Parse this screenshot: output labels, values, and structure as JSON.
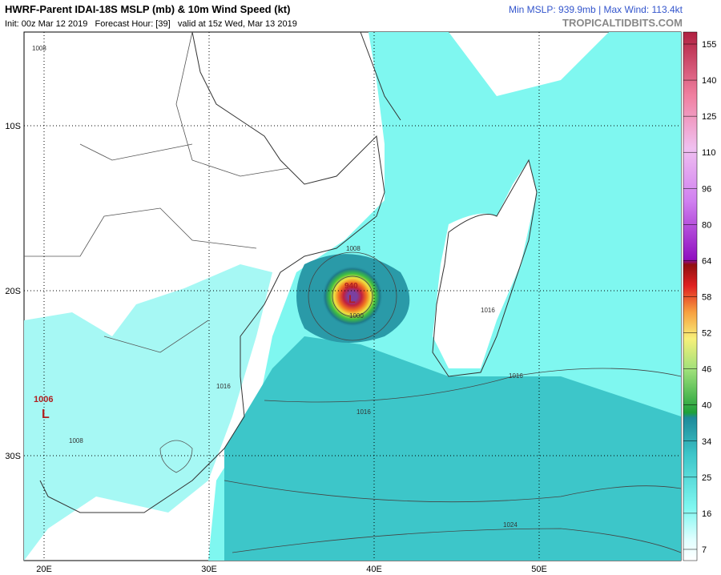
{
  "header": {
    "title": "HWRF-Parent IDAI-18S MSLP (mb) & 10m Wind Speed (kt)",
    "init": "Init: 00z Mar 12 2019   Forecast Hour: [39]   valid at 15z Wed, Mar 13 2019",
    "stats": "Min MSLP: 939.9mb | Max Wind: 113.4kt",
    "site": "TROPICALTIDBITS.COM"
  },
  "map": {
    "lat_labels": [
      "10S",
      "20S",
      "30S"
    ],
    "lon_labels": [
      "20E",
      "30E",
      "40E",
      "50E"
    ],
    "isobar_labels": [
      "1008",
      "1016",
      "1016",
      "1016",
      "1008",
      "1000",
      "1024",
      "1016",
      "1008"
    ],
    "lows": [
      {
        "pressure": "1006",
        "symbol": "L"
      },
      {
        "pressure": "940",
        "symbol": "L"
      }
    ]
  },
  "colorbar": {
    "ticks": [
      "155",
      "140",
      "125",
      "110",
      "96",
      "80",
      "64",
      "58",
      "52",
      "46",
      "40",
      "34",
      "25",
      "16",
      "7"
    ]
  }
}
